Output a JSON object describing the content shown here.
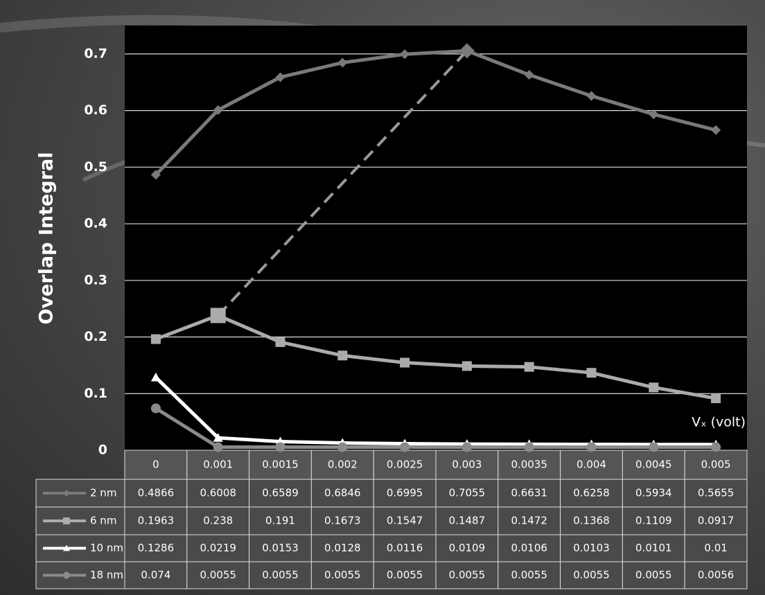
{
  "chart_data": {
    "type": "line",
    "y_label": "Overlap Integral",
    "x_label": "Vₓ (volt)",
    "categories": [
      "0",
      "0.001",
      "0.0015",
      "0.002",
      "0.0025",
      "0.003",
      "0.0035",
      "0.004",
      "0.0045",
      "0.005"
    ],
    "series": [
      {
        "name": "2 nm",
        "color": "#7a7a7a",
        "marker": "diamond",
        "values": [
          0.4866,
          0.6008,
          0.6589,
          0.6846,
          0.6995,
          0.7055,
          0.6631,
          0.6258,
          0.5934,
          0.5655
        ]
      },
      {
        "name": "6 nm",
        "color": "#ababab",
        "marker": "square",
        "values": [
          0.1963,
          0.238,
          0.191,
          0.1673,
          0.1547,
          0.1487,
          0.1472,
          0.1368,
          0.1109,
          0.0917
        ]
      },
      {
        "name": "10 nm",
        "color": "#ffffff",
        "marker": "triangle",
        "values": [
          0.1286,
          0.0219,
          0.0153,
          0.0128,
          0.0116,
          0.0109,
          0.0106,
          0.0103,
          0.0101,
          0.01
        ]
      },
      {
        "name": "18 nm",
        "color": "#8a8a8a",
        "marker": "circle",
        "values": [
          0.074,
          0.0055,
          0.0055,
          0.0055,
          0.0055,
          0.0055,
          0.0055,
          0.0055,
          0.0055,
          0.0056
        ]
      }
    ],
    "ylim": [
      0,
      0.75
    ],
    "yticks": [
      0,
      0.1,
      0.2,
      0.3,
      0.4,
      0.5,
      0.6,
      0.7
    ],
    "grid": true
  }
}
